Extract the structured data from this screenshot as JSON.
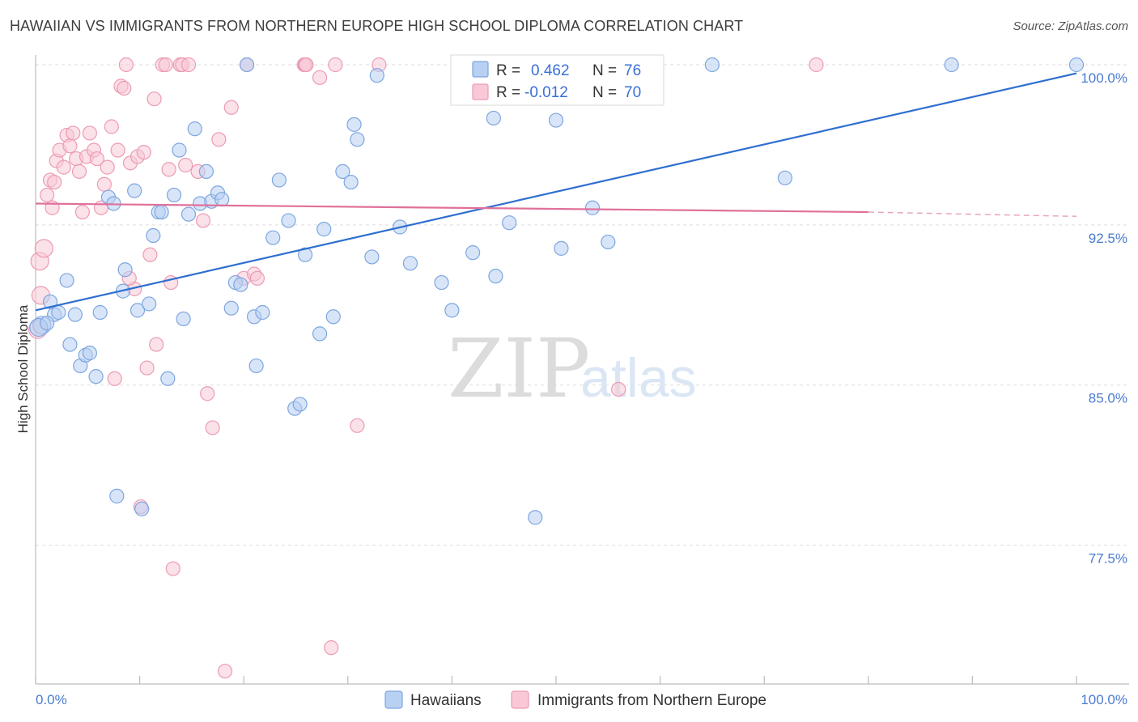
{
  "title": "HAWAIIAN VS IMMIGRANTS FROM NORTHERN EUROPE HIGH SCHOOL DIPLOMA CORRELATION CHART",
  "source": "Source: ZipAtlas.com",
  "watermark": {
    "zip": "ZIP",
    "atlas": "atlas"
  },
  "legend": {
    "r_label": "R =",
    "n_label": "N =",
    "series": [
      {
        "name": "Hawaiians",
        "r": "0.462",
        "n": "76",
        "fill": "#b8d0f2",
        "stroke": "#7da6e0"
      },
      {
        "name": "Immigrants from Northern Europe",
        "r": "-0.012",
        "n": "70",
        "fill": "#f8c8d6",
        "stroke": "#ec9bb3"
      }
    ]
  },
  "chart_data": {
    "type": "scatter",
    "ylabel": "High School Diploma",
    "xlabel": "",
    "xlim": [
      0,
      100
    ],
    "ylim": [
      71,
      101
    ],
    "x_tick_labels": [
      {
        "value": 0,
        "label": "0.0%"
      },
      {
        "value": 100,
        "label": "100.0%"
      }
    ],
    "y_ticks": [
      {
        "value": 100,
        "label": "100.0%"
      },
      {
        "value": 92.5,
        "label": "92.5%"
      },
      {
        "value": 85,
        "label": "85.0%"
      },
      {
        "value": 77.5,
        "label": "77.5%"
      }
    ],
    "grid": true,
    "series": [
      {
        "name": "Hawaiians",
        "color": "#7da6e0",
        "trend": {
          "x": [
            0,
            100
          ],
          "y": [
            88.5,
            99.6
          ]
        },
        "points": [
          [
            0.6,
            87.8
          ],
          [
            1.4,
            88.9
          ],
          [
            1.8,
            88.3
          ],
          [
            2.2,
            88.4
          ],
          [
            3.0,
            89.9
          ],
          [
            3.3,
            86.9
          ],
          [
            3.8,
            88.3
          ],
          [
            4.3,
            85.9
          ],
          [
            4.8,
            86.4
          ],
          [
            5.2,
            86.5
          ],
          [
            5.8,
            85.4
          ],
          [
            6.2,
            88.4
          ],
          [
            7.0,
            93.8
          ],
          [
            7.5,
            93.5
          ],
          [
            7.8,
            79.8
          ],
          [
            8.4,
            89.4
          ],
          [
            8.6,
            90.4
          ],
          [
            9.5,
            94.1
          ],
          [
            9.8,
            88.5
          ],
          [
            10.2,
            79.2
          ],
          [
            10.9,
            88.8
          ],
          [
            11.3,
            92.0
          ],
          [
            11.8,
            93.1
          ],
          [
            12.1,
            93.1
          ],
          [
            12.7,
            85.3
          ],
          [
            13.3,
            93.9
          ],
          [
            13.8,
            96.0
          ],
          [
            14.2,
            88.1
          ],
          [
            14.7,
            93.0
          ],
          [
            15.3,
            97.0
          ],
          [
            15.8,
            93.5
          ],
          [
            16.4,
            95.0
          ],
          [
            16.9,
            93.6
          ],
          [
            17.5,
            94.0
          ],
          [
            17.9,
            93.7
          ],
          [
            18.8,
            88.6
          ],
          [
            19.2,
            89.8
          ],
          [
            19.7,
            89.7
          ],
          [
            20.3,
            100.0
          ],
          [
            21.0,
            88.2
          ],
          [
            21.2,
            85.9
          ],
          [
            21.8,
            88.4
          ],
          [
            22.8,
            91.9
          ],
          [
            23.4,
            94.6
          ],
          [
            24.3,
            92.7
          ],
          [
            24.9,
            83.9
          ],
          [
            25.4,
            84.1
          ],
          [
            25.9,
            91.1
          ],
          [
            27.3,
            87.4
          ],
          [
            27.7,
            92.3
          ],
          [
            28.6,
            88.2
          ],
          [
            29.5,
            95.0
          ],
          [
            30.3,
            94.5
          ],
          [
            30.6,
            97.2
          ],
          [
            30.9,
            96.5
          ],
          [
            32.3,
            91.0
          ],
          [
            32.8,
            99.5
          ],
          [
            35.0,
            92.4
          ],
          [
            36.0,
            90.7
          ],
          [
            39.0,
            89.8
          ],
          [
            40.0,
            88.5
          ],
          [
            42.0,
            91.2
          ],
          [
            44.0,
            97.5
          ],
          [
            44.2,
            90.1
          ],
          [
            45.5,
            92.6
          ],
          [
            48.0,
            78.8
          ],
          [
            50.0,
            97.4
          ],
          [
            50.5,
            91.4
          ],
          [
            53.5,
            93.3
          ],
          [
            55.0,
            91.7
          ],
          [
            65.0,
            100.0
          ],
          [
            72.0,
            94.7
          ],
          [
            88.0,
            100.0
          ],
          [
            100.0,
            100.0
          ],
          [
            0.3,
            87.7
          ],
          [
            1.1,
            87.9
          ]
        ]
      },
      {
        "name": "Immigrants from Northern Europe",
        "color": "#ec9bb3",
        "trend": {
          "x": [
            0,
            80
          ],
          "y": [
            93.5,
            93.1
          ]
        },
        "trend_dashed": {
          "x": [
            80,
            100
          ],
          "y": [
            93.1,
            92.9
          ]
        },
        "points": [
          [
            0.2,
            87.6
          ],
          [
            0.4,
            90.8
          ],
          [
            0.8,
            91.4
          ],
          [
            1.1,
            93.9
          ],
          [
            1.4,
            94.6
          ],
          [
            1.8,
            94.5
          ],
          [
            2.0,
            95.5
          ],
          [
            2.3,
            96.0
          ],
          [
            2.7,
            95.2
          ],
          [
            3.0,
            96.7
          ],
          [
            3.3,
            96.2
          ],
          [
            3.6,
            96.8
          ],
          [
            3.9,
            95.6
          ],
          [
            4.2,
            95.0
          ],
          [
            4.5,
            93.1
          ],
          [
            4.9,
            95.7
          ],
          [
            5.2,
            96.8
          ],
          [
            5.6,
            96.0
          ],
          [
            5.9,
            95.6
          ],
          [
            6.3,
            93.3
          ],
          [
            6.6,
            94.4
          ],
          [
            6.9,
            95.2
          ],
          [
            7.3,
            97.1
          ],
          [
            7.6,
            85.3
          ],
          [
            7.9,
            96.0
          ],
          [
            8.2,
            99.0
          ],
          [
            8.5,
            98.9
          ],
          [
            8.7,
            100.0
          ],
          [
            9.1,
            95.4
          ],
          [
            9.5,
            89.5
          ],
          [
            9.8,
            95.7
          ],
          [
            10.1,
            79.3
          ],
          [
            10.4,
            95.9
          ],
          [
            10.7,
            85.8
          ],
          [
            11.0,
            91.1
          ],
          [
            11.4,
            98.4
          ],
          [
            11.6,
            86.9
          ],
          [
            12.2,
            100.0
          ],
          [
            12.5,
            100.0
          ],
          [
            12.8,
            95.1
          ],
          [
            13.0,
            89.8
          ],
          [
            13.2,
            76.4
          ],
          [
            13.9,
            100.0
          ],
          [
            14.1,
            100.0
          ],
          [
            14.4,
            95.3
          ],
          [
            14.7,
            100.0
          ],
          [
            15.6,
            95.0
          ],
          [
            16.1,
            92.7
          ],
          [
            16.5,
            84.6
          ],
          [
            17.0,
            83.0
          ],
          [
            17.6,
            96.5
          ],
          [
            18.2,
            71.6
          ],
          [
            18.8,
            98.0
          ],
          [
            20.0,
            90.0
          ],
          [
            20.3,
            100.0
          ],
          [
            21.0,
            90.2
          ],
          [
            21.3,
            90.0
          ],
          [
            25.8,
            100.0
          ],
          [
            25.9,
            100.0
          ],
          [
            26.0,
            100.0
          ],
          [
            27.3,
            99.4
          ],
          [
            28.4,
            72.7
          ],
          [
            28.8,
            100.0
          ],
          [
            30.9,
            83.1
          ],
          [
            33.0,
            100.0
          ],
          [
            56.0,
            84.8
          ],
          [
            75.0,
            100.0
          ],
          [
            0.5,
            89.2
          ],
          [
            1.6,
            93.3
          ],
          [
            9.0,
            90.0
          ]
        ]
      }
    ]
  }
}
